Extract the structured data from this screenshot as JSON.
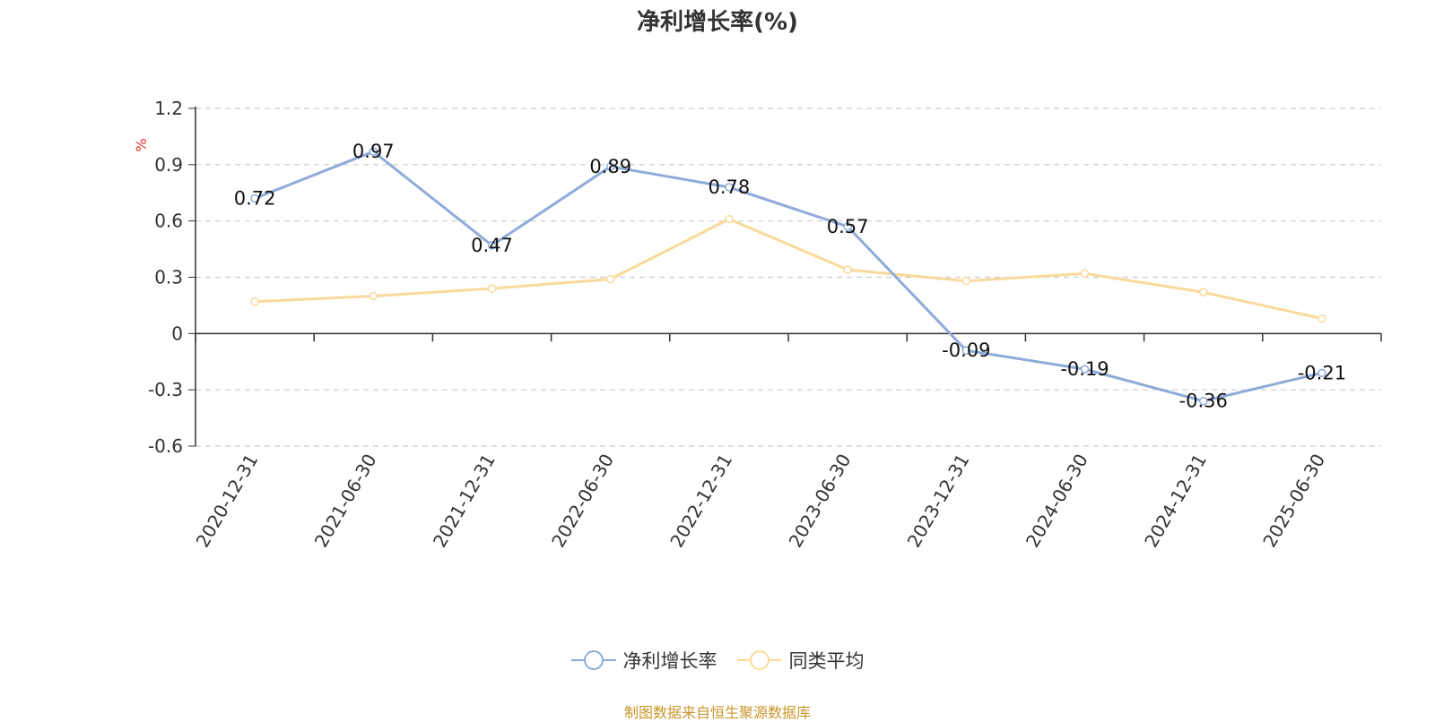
{
  "chart_data": {
    "type": "line",
    "title": "净利增长率(%)",
    "ylabel": "%",
    "xlabel": "",
    "categories": [
      "2020-12-31",
      "2021-06-30",
      "2021-12-31",
      "2022-06-30",
      "2022-12-31",
      "2023-06-30",
      "2023-12-31",
      "2024-06-30",
      "2024-12-31",
      "2025-06-30"
    ],
    "ylim": [
      -0.6,
      1.2
    ],
    "yticks": [
      "1.2",
      "0.9",
      "0.6",
      "0.3",
      "0",
      "-0.3",
      "-0.6"
    ],
    "grid": true,
    "legend_position": "bottom",
    "series": [
      {
        "name": "净利增长率",
        "color": "#8eabd9",
        "values": [
          0.72,
          0.97,
          0.47,
          0.89,
          0.78,
          0.57,
          -0.09,
          -0.19,
          -0.36,
          -0.21
        ],
        "labels": [
          "0.72",
          "0.97",
          "0.47",
          "0.89",
          "0.78",
          "0.57",
          "-0.09",
          "-0.19",
          "-0.36",
          "-0.21"
        ]
      },
      {
        "name": "同类平均",
        "color": "#fad99a",
        "values": [
          0.17,
          0.2,
          0.24,
          0.29,
          0.61,
          0.34,
          0.28,
          0.32,
          0.22,
          0.08
        ]
      }
    ],
    "source": "制图数据来自恒生聚源数据库"
  }
}
